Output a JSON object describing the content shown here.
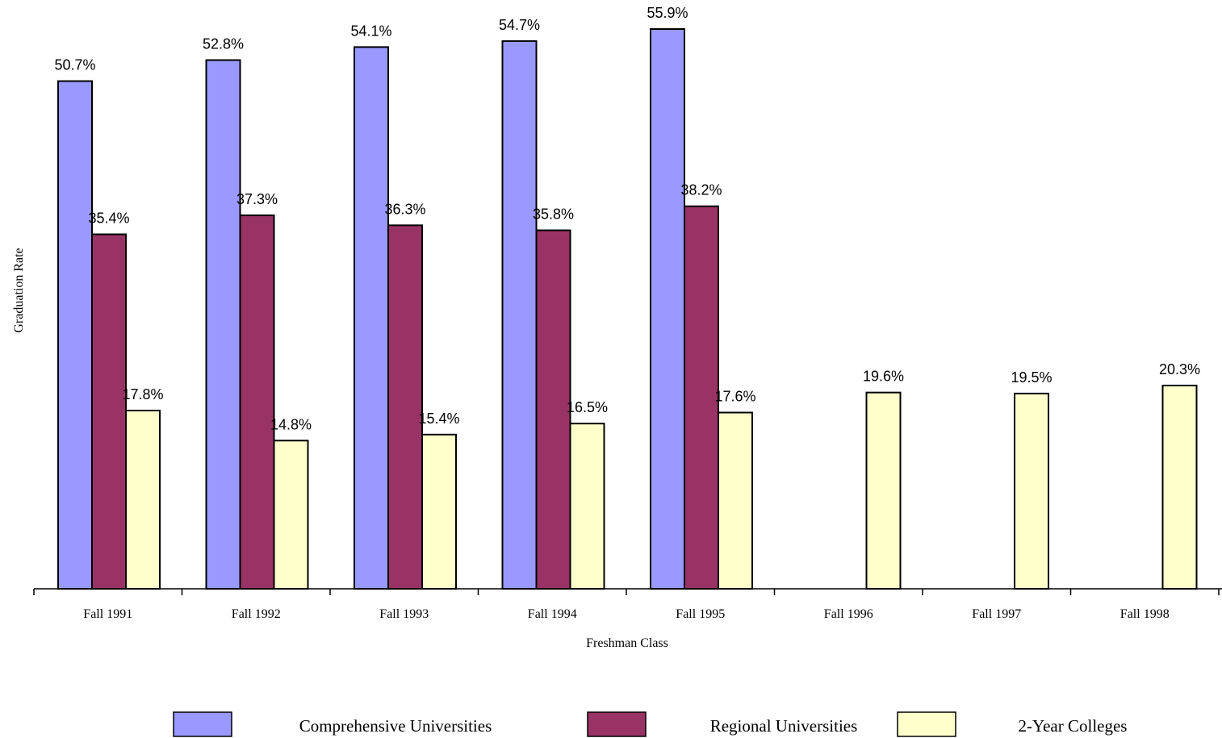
{
  "chart_data": {
    "type": "bar",
    "xlabel": "Freshman Class",
    "ylabel": "Graduation Rate",
    "categories": [
      "Fall 1991",
      "Fall 1992",
      "Fall 1993",
      "Fall 1994",
      "Fall 1995",
      "Fall 1996",
      "Fall 1997",
      "Fall 1998"
    ],
    "series": [
      {
        "name": "Comprehensive Universities",
        "color": "#9999ff",
        "values": [
          50.7,
          52.8,
          54.1,
          54.7,
          55.9,
          null,
          null,
          null
        ]
      },
      {
        "name": "Regional Universities",
        "color": "#993366",
        "values": [
          35.4,
          37.3,
          36.3,
          35.8,
          38.2,
          null,
          null,
          null
        ]
      },
      {
        "name": "2-Year Colleges",
        "color": "#ffffcc",
        "values": [
          17.8,
          14.8,
          15.4,
          16.5,
          17.6,
          19.6,
          19.5,
          20.3
        ]
      }
    ],
    "ylim": [
      0,
      58.8
    ],
    "data_label_suffix": "%",
    "grid": false,
    "legend_position": "bottom"
  }
}
